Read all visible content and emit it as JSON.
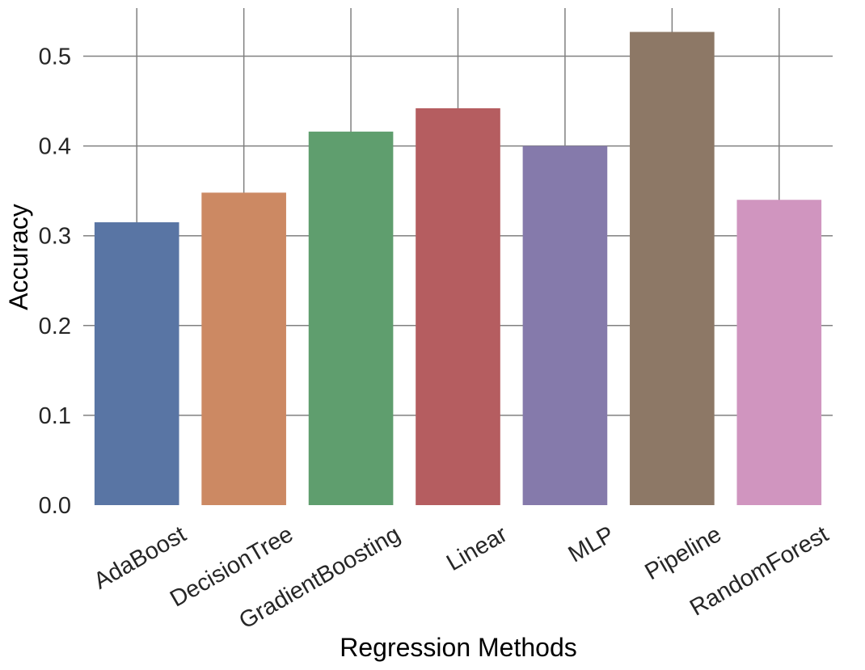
{
  "chart_data": {
    "type": "bar",
    "title": "",
    "xlabel": "Regression Methods",
    "ylabel": "Accuracy",
    "categories": [
      "AdaBoost",
      "DecisionTree",
      "GradientBoosting",
      "Linear",
      "MLP",
      "Pipeline",
      "RandomForest"
    ],
    "values": [
      0.315,
      0.348,
      0.416,
      0.442,
      0.4,
      0.527,
      0.34
    ],
    "colors": [
      "#5975a4",
      "#cc8963",
      "#5f9e6e",
      "#b55d60",
      "#857aab",
      "#8d7866",
      "#d095bf"
    ],
    "ylim": [
      0,
      0.55
    ],
    "yticks": [
      "0.0",
      "0.1",
      "0.2",
      "0.3",
      "0.4",
      "0.5"
    ],
    "ytick_values": [
      0,
      0.1,
      0.2,
      0.3,
      0.4,
      0.5
    ],
    "grid": true,
    "xtick_rotation": -30
  }
}
